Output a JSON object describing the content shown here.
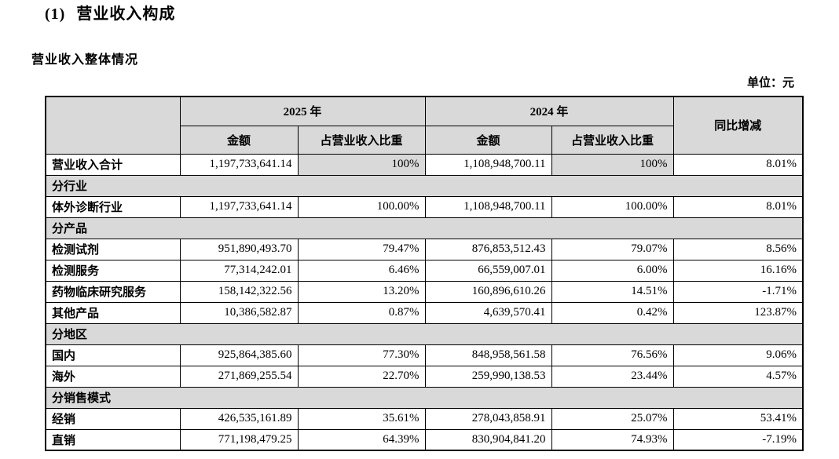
{
  "page": {
    "title_number": "(1)",
    "title_text": "营业收入构成",
    "subtitle": "营业收入整体情况",
    "unit_label": "单位：元"
  },
  "table": {
    "header": {
      "year_2025": "2025 年",
      "year_2024": "2024 年",
      "amount": "金额",
      "ratio": "占营业收入比重",
      "yoy": "同比增减"
    },
    "colors": {
      "header_bg": "#d9d9d9",
      "border": "#000000"
    },
    "rows": [
      {
        "type": "data",
        "label": "营业收入合计",
        "amount_2025": "1,197,733,641.14",
        "ratio_2025": "100%",
        "amount_2024": "1,108,948,700.11",
        "ratio_2024": "100%",
        "yoy": "8.01%",
        "ratio_shaded": true
      },
      {
        "type": "section",
        "label": "分行业"
      },
      {
        "type": "data",
        "label": "体外诊断行业",
        "amount_2025": "1,197,733,641.14",
        "ratio_2025": "100.00%",
        "amount_2024": "1,108,948,700.11",
        "ratio_2024": "100.00%",
        "yoy": "8.01%"
      },
      {
        "type": "section",
        "label": "分产品"
      },
      {
        "type": "data",
        "label": "检测试剂",
        "amount_2025": "951,890,493.70",
        "ratio_2025": "79.47%",
        "amount_2024": "876,853,512.43",
        "ratio_2024": "79.07%",
        "yoy": "8.56%"
      },
      {
        "type": "data",
        "label": "检测服务",
        "amount_2025": "77,314,242.01",
        "ratio_2025": "6.46%",
        "amount_2024": "66,559,007.01",
        "ratio_2024": "6.00%",
        "yoy": "16.16%"
      },
      {
        "type": "data",
        "label": "药物临床研究服务",
        "amount_2025": "158,142,322.56",
        "ratio_2025": "13.20%",
        "amount_2024": "160,896,610.26",
        "ratio_2024": "14.51%",
        "yoy": "-1.71%"
      },
      {
        "type": "data",
        "label": "其他产品",
        "amount_2025": "10,386,582.87",
        "ratio_2025": "0.87%",
        "amount_2024": "4,639,570.41",
        "ratio_2024": "0.42%",
        "yoy": "123.87%"
      },
      {
        "type": "section",
        "label": "分地区"
      },
      {
        "type": "data",
        "label": "国内",
        "amount_2025": "925,864,385.60",
        "ratio_2025": "77.30%",
        "amount_2024": "848,958,561.58",
        "ratio_2024": "76.56%",
        "yoy": "9.06%"
      },
      {
        "type": "data",
        "label": "海外",
        "amount_2025": "271,869,255.54",
        "ratio_2025": "22.70%",
        "amount_2024": "259,990,138.53",
        "ratio_2024": "23.44%",
        "yoy": "4.57%"
      },
      {
        "type": "section",
        "label": "分销售模式"
      },
      {
        "type": "data",
        "label": "经销",
        "amount_2025": "426,535,161.89",
        "ratio_2025": "35.61%",
        "amount_2024": "278,043,858.91",
        "ratio_2024": "25.07%",
        "yoy": "53.41%"
      },
      {
        "type": "data",
        "label": "直销",
        "amount_2025": "771,198,479.25",
        "ratio_2025": "64.39%",
        "amount_2024": "830,904,841.20",
        "ratio_2024": "74.93%",
        "yoy": "-7.19%"
      }
    ]
  }
}
